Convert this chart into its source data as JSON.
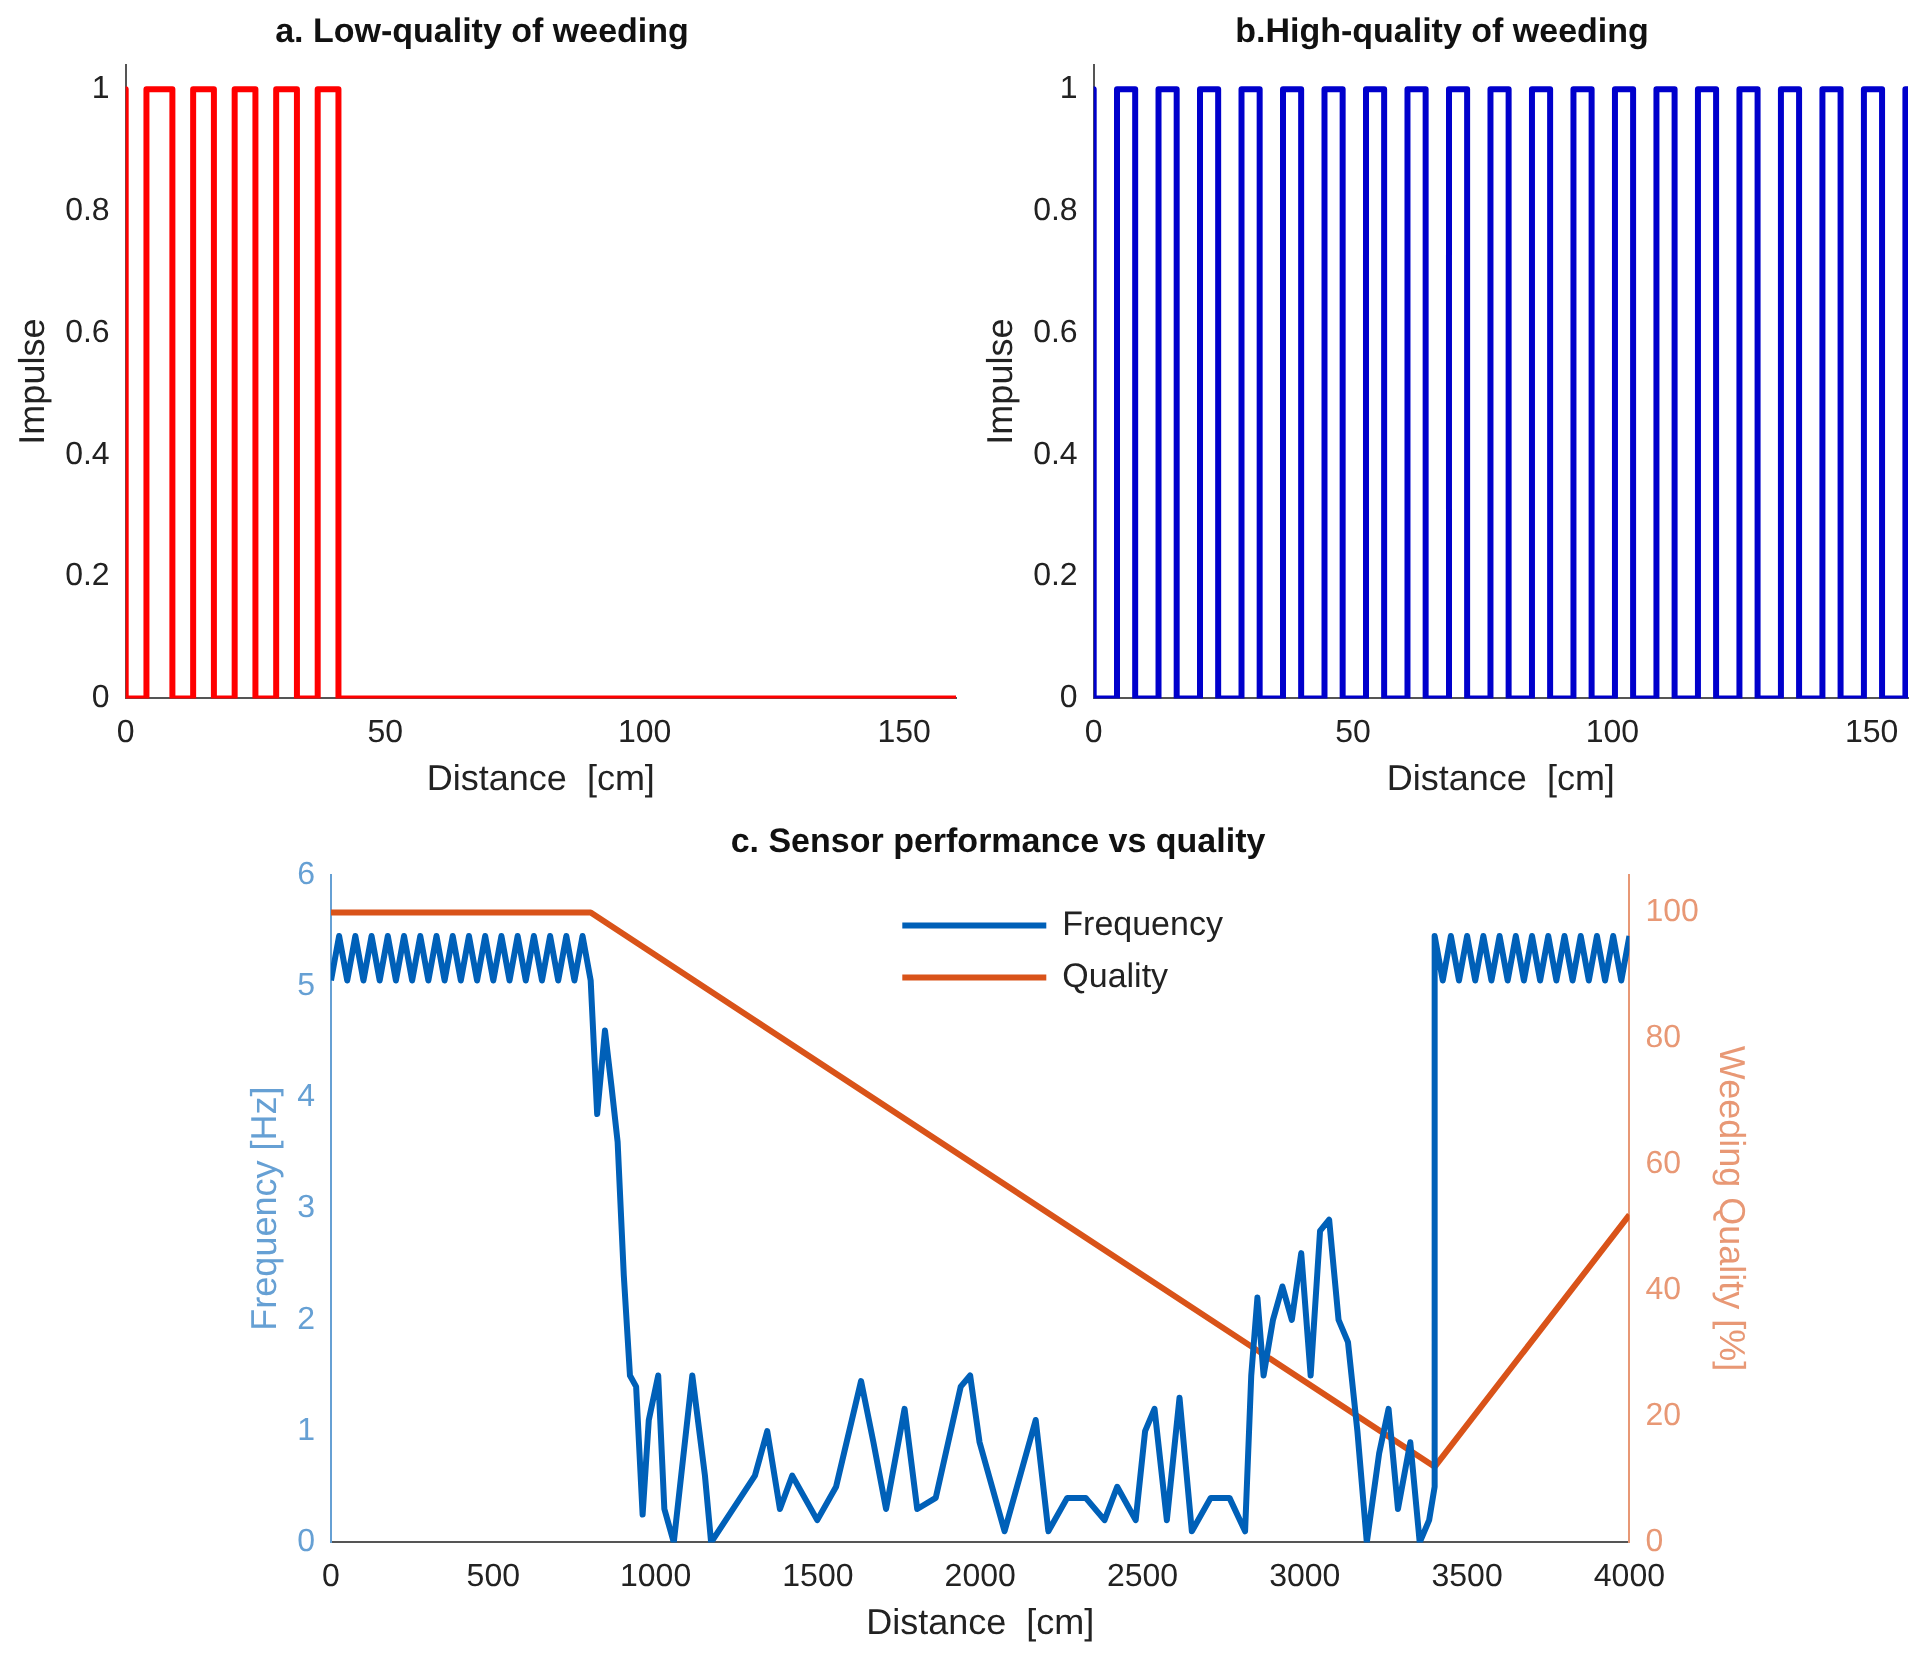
{
  "chart_data": [
    {
      "type": "line",
      "title": "a. Low-quality of weeding",
      "xlabel": "Distance  [cm]",
      "ylabel": "Impulse",
      "xlim": [
        0,
        160
      ],
      "xticks": [
        0,
        50,
        100,
        150
      ],
      "ylim": [
        0,
        1.04
      ],
      "yticks": [
        0,
        0.2,
        0.4,
        0.6,
        0.8,
        1
      ],
      "grid": false,
      "marker": "none",
      "series": [
        {
          "color": "#ff0000",
          "x": [
            0,
            0,
            4,
            4,
            9,
            9,
            13,
            13,
            17,
            17,
            21,
            21,
            25,
            25,
            29,
            29,
            33,
            33,
            37,
            37,
            41,
            41,
            160
          ],
          "values": [
            1,
            0,
            0,
            1,
            1,
            0,
            0,
            1,
            1,
            0,
            0,
            1,
            1,
            0,
            0,
            1,
            1,
            0,
            0,
            1,
            1,
            0,
            0
          ]
        }
      ]
    },
    {
      "type": "line",
      "title": "b.High-quality of weeding",
      "xlabel": "Distance  [cm]",
      "ylabel": "Impulse",
      "xlim": [
        0,
        157
      ],
      "xticks": [
        0,
        50,
        100,
        150
      ],
      "ylim": [
        0,
        1.04
      ],
      "yticks": [
        0,
        0.2,
        0.4,
        0.6,
        0.8,
        1
      ],
      "grid": false,
      "marker": "none",
      "series": [
        {
          "color": "#0000cc",
          "x": [
            0,
            0,
            4.5,
            4.5,
            8,
            8,
            12.5,
            12.5,
            16,
            16,
            20.5,
            20.5,
            24,
            24,
            28.5,
            28.5,
            32,
            32,
            36.5,
            36.5,
            40,
            40,
            44.5,
            44.5,
            48,
            48,
            52.5,
            52.5,
            56,
            56,
            60.5,
            60.5,
            64,
            64,
            68.5,
            68.5,
            72,
            72,
            76.5,
            76.5,
            80,
            80,
            84.5,
            84.5,
            88,
            88,
            92.5,
            92.5,
            96,
            96,
            100.5,
            100.5,
            104,
            104,
            108.5,
            108.5,
            112,
            112,
            116.5,
            116.5,
            120,
            120,
            124.5,
            124.5,
            128,
            128,
            132.5,
            132.5,
            136,
            136,
            140.5,
            140.5,
            144,
            144,
            148.5,
            148.5,
            152,
            152,
            156.5,
            156.5,
            157
          ],
          "values": [
            1,
            0,
            0,
            1,
            1,
            0,
            0,
            1,
            1,
            0,
            0,
            1,
            1,
            0,
            0,
            1,
            1,
            0,
            0,
            1,
            1,
            0,
            0,
            1,
            1,
            0,
            0,
            1,
            1,
            0,
            0,
            1,
            1,
            0,
            0,
            1,
            1,
            0,
            0,
            1,
            1,
            0,
            0,
            1,
            1,
            0,
            0,
            1,
            1,
            0,
            0,
            1,
            1,
            0,
            0,
            1,
            1,
            0,
            0,
            1,
            1,
            0,
            0,
            1,
            1,
            0,
            0,
            1,
            1,
            0,
            0,
            1,
            1,
            0,
            0,
            1,
            1,
            0,
            0,
            1,
            1
          ]
        }
      ]
    },
    {
      "type": "line",
      "title": "c. Sensor performance vs quality",
      "xlabel": "Distance  [cm]",
      "ylabel": "Frequency [Hz]",
      "y2label": "Weeding Quality [%]",
      "xlim": [
        0,
        4000
      ],
      "xticks": [
        0,
        500,
        1000,
        1500,
        2000,
        2500,
        3000,
        3500,
        4000
      ],
      "ylim": [
        0,
        6
      ],
      "yticks": [
        0,
        1,
        2,
        3,
        4,
        5,
        6
      ],
      "y2lim": [
        0,
        106
      ],
      "y2ticks": [
        0,
        20,
        40,
        60,
        80,
        100
      ],
      "grid": false,
      "marker": "none",
      "legend": "top",
      "series": [
        {
          "name": "Frequency",
          "color": "#0060b8",
          "x": [
            0,
            25,
            50,
            75,
            100,
            125,
            150,
            175,
            200,
            225,
            250,
            275,
            300,
            325,
            350,
            375,
            400,
            425,
            450,
            475,
            500,
            525,
            550,
            575,
            600,
            625,
            650,
            675,
            700,
            725,
            750,
            775,
            800,
            820,
            844,
            864,
            883,
            902,
            921,
            940,
            960,
            979,
            1008,
            1027,
            1056,
            1113,
            1152,
            1171,
            1306,
            1344,
            1383,
            1421,
            1498,
            1556,
            1633,
            1671,
            1710,
            1767,
            1806,
            1863,
            1940,
            1969,
            1998,
            2075,
            2171,
            2210,
            2268,
            2325,
            2383,
            2422,
            2479,
            2508,
            2537,
            2575,
            2614,
            2652,
            2710,
            2768,
            2816,
            2835,
            2854,
            2873,
            2902,
            2931,
            2960,
            2989,
            3018,
            3047,
            3075,
            3104,
            3133,
            3162,
            3191,
            3229,
            3258,
            3287,
            3325,
            3354,
            3383,
            3400,
            3400,
            3425,
            3450,
            3475,
            3500,
            3525,
            3550,
            3575,
            3600,
            3625,
            3650,
            3675,
            3700,
            3725,
            3750,
            3775,
            3800,
            3825,
            3850,
            3875,
            3900,
            3925,
            3950,
            3975,
            4000
          ],
          "values": [
            5.05,
            5.45,
            5.05,
            5.45,
            5.05,
            5.45,
            5.05,
            5.45,
            5.05,
            5.45,
            5.05,
            5.45,
            5.05,
            5.45,
            5.05,
            5.45,
            5.05,
            5.45,
            5.05,
            5.45,
            5.05,
            5.45,
            5.05,
            5.45,
            5.05,
            5.45,
            5.05,
            5.45,
            5.05,
            5.45,
            5.05,
            5.45,
            5.05,
            3.85,
            4.6,
            4.1,
            3.6,
            2.4,
            1.5,
            1.4,
            0.25,
            1.1,
            1.5,
            0.3,
            0,
            1.5,
            0.6,
            0,
            0.6,
            1,
            0.3,
            0.6,
            0.2,
            0.5,
            1.45,
            0.9,
            0.3,
            1.2,
            0.3,
            0.4,
            1.4,
            1.5,
            0.9,
            0.1,
            1.1,
            0.1,
            0.4,
            0.4,
            0.2,
            0.5,
            0.2,
            1,
            1.2,
            0.2,
            1.3,
            0.1,
            0.4,
            0.4,
            0.1,
            1.5,
            2.2,
            1.5,
            2,
            2.3,
            2,
            2.6,
            1.5,
            2.8,
            2.9,
            2,
            1.8,
            1,
            0,
            0.8,
            1.2,
            0.3,
            0.9,
            0,
            0.2,
            0.5,
            5.45,
            5.05,
            5.45,
            5.05,
            5.45,
            5.05,
            5.45,
            5.05,
            5.45,
            5.05,
            5.45,
            5.05,
            5.45,
            5.05,
            5.45,
            5.05,
            5.45,
            5.05,
            5.45,
            5.05,
            5.45,
            5.05,
            5.45,
            5.05,
            5.45
          ]
        },
        {
          "name": "Quality",
          "color": "#d95319",
          "axis": "y2",
          "x": [
            0,
            800,
            3400,
            4000
          ],
          "values": [
            100,
            100,
            12,
            52
          ]
        }
      ]
    }
  ]
}
